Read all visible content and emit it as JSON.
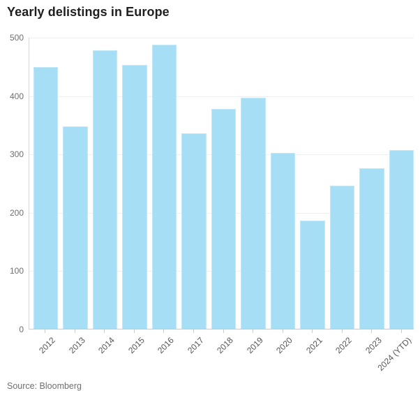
{
  "title": "Yearly delistings in Europe",
  "source": "Source: Bloomberg",
  "colors": {
    "bar": "#a6def5",
    "bar_edge": "#c3e8f9",
    "gridline": "#efefef",
    "axis_line": "#c9c9c9",
    "y_label": "#6e6e6e",
    "x_label": "#555555",
    "title": "#1f1f1f",
    "source": "#6e6e6e",
    "background": "#ffffff"
  },
  "chart_data": {
    "type": "bar",
    "title": "Yearly delistings in Europe",
    "xlabel": "",
    "ylabel": "",
    "categories": [
      "2012",
      "2013",
      "2014",
      "2015",
      "2016",
      "2017",
      "2018",
      "2019",
      "2020",
      "2021",
      "2022",
      "2023",
      "2024 (YTD)"
    ],
    "values": [
      449,
      347,
      477,
      452,
      487,
      335,
      377,
      396,
      301,
      185,
      245,
      275,
      306
    ],
    "ylim": [
      0,
      500
    ],
    "yticks": [
      0,
      100,
      200,
      300,
      400,
      500
    ],
    "grid": "horizontal",
    "legend": "none",
    "bar_color": "#a6def5",
    "source": "Source: Bloomberg"
  }
}
